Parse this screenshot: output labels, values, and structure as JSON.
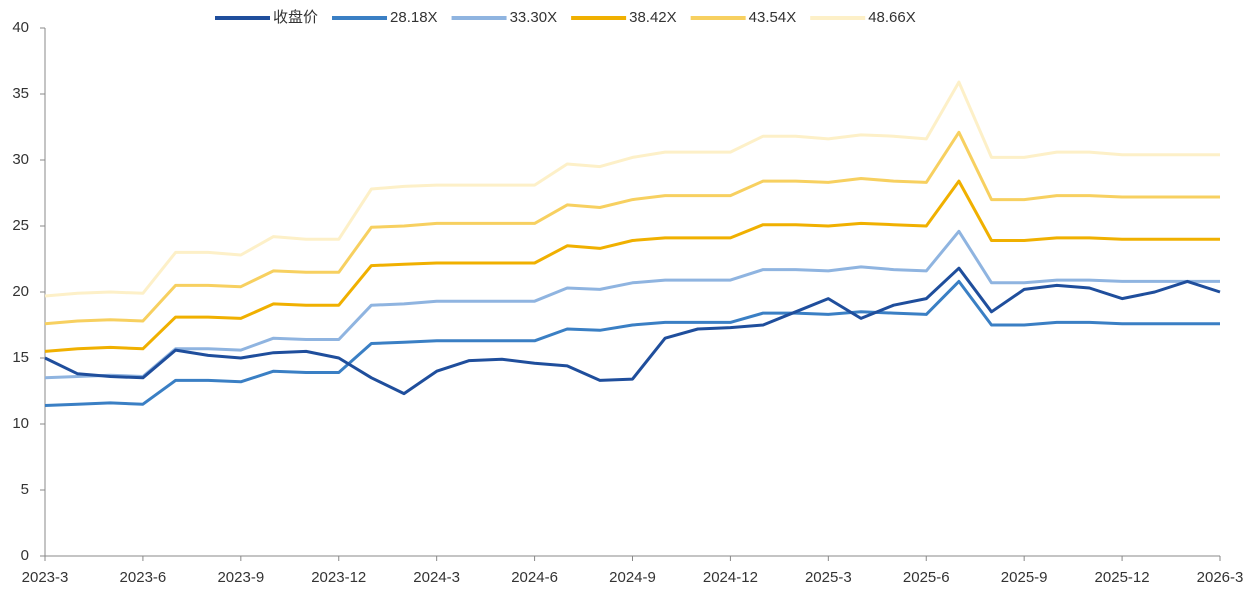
{
  "chart_data": {
    "type": "line",
    "categories": [
      "2023-3",
      null,
      null,
      "2023-6",
      null,
      null,
      "2023-9",
      null,
      null,
      "2023-12",
      null,
      null,
      "2024-3",
      null,
      null,
      "2024-6",
      null,
      null,
      "2024-9",
      null,
      null,
      "2024-12",
      null,
      null,
      "2025-3",
      null,
      null,
      "2025-6",
      null,
      null,
      "2025-9",
      null,
      null,
      "2025-12",
      null,
      null,
      "2026-3"
    ],
    "series": [
      {
        "name": "收盘价",
        "color": "#1f4e9c",
        "values": [
          15.0,
          13.8,
          13.6,
          13.5,
          15.6,
          15.2,
          15.0,
          15.4,
          15.5,
          15.0,
          13.5,
          12.3,
          14.0,
          14.8,
          14.9,
          14.6,
          14.4,
          13.3,
          13.4,
          16.5,
          17.2,
          17.3,
          17.5,
          18.5,
          19.5,
          18.0,
          19.0,
          19.5,
          21.8,
          18.5,
          20.2,
          20.5,
          20.3,
          19.5,
          20.0,
          20.8,
          20.0
        ]
      },
      {
        "name": "28.18X",
        "color": "#3a7fc4",
        "values": [
          11.4,
          11.5,
          11.6,
          11.5,
          13.3,
          13.3,
          13.2,
          14.0,
          13.9,
          13.9,
          16.1,
          16.2,
          16.3,
          16.3,
          16.3,
          16.3,
          17.2,
          17.1,
          17.5,
          17.7,
          17.7,
          17.7,
          18.4,
          18.4,
          18.3,
          18.5,
          18.4,
          18.3,
          20.8,
          17.5,
          17.5,
          17.7,
          17.7,
          17.6,
          17.6,
          17.6,
          17.6
        ]
      },
      {
        "name": "33.30X",
        "color": "#8fb4e0",
        "values": [
          13.5,
          13.6,
          13.7,
          13.6,
          15.7,
          15.7,
          15.6,
          16.5,
          16.4,
          16.4,
          19.0,
          19.1,
          19.3,
          19.3,
          19.3,
          19.3,
          20.3,
          20.2,
          20.7,
          20.9,
          20.9,
          20.9,
          21.7,
          21.7,
          21.6,
          21.9,
          21.7,
          21.6,
          24.6,
          20.7,
          20.7,
          20.9,
          20.9,
          20.8,
          20.8,
          20.8,
          20.8
        ]
      },
      {
        "name": "38.42X",
        "color": "#f0b000",
        "values": [
          15.5,
          15.7,
          15.8,
          15.7,
          18.1,
          18.1,
          18.0,
          19.1,
          19.0,
          19.0,
          22.0,
          22.1,
          22.2,
          22.2,
          22.2,
          22.2,
          23.5,
          23.3,
          23.9,
          24.1,
          24.1,
          24.1,
          25.1,
          25.1,
          25.0,
          25.2,
          25.1,
          25.0,
          28.4,
          23.9,
          23.9,
          24.1,
          24.1,
          24.0,
          24.0,
          24.0,
          24.0
        ]
      },
      {
        "name": "43.54X",
        "color": "#f7d060",
        "values": [
          17.6,
          17.8,
          17.9,
          17.8,
          20.5,
          20.5,
          20.4,
          21.6,
          21.5,
          21.5,
          24.9,
          25.0,
          25.2,
          25.2,
          25.2,
          25.2,
          26.6,
          26.4,
          27.0,
          27.3,
          27.3,
          27.3,
          28.4,
          28.4,
          28.3,
          28.6,
          28.4,
          28.3,
          32.1,
          27.0,
          27.0,
          27.3,
          27.3,
          27.2,
          27.2,
          27.2,
          27.2
        ]
      },
      {
        "name": "48.66X",
        "color": "#fdf0c8",
        "values": [
          19.7,
          19.9,
          20.0,
          19.9,
          23.0,
          23.0,
          22.8,
          24.2,
          24.0,
          24.0,
          27.8,
          28.0,
          28.1,
          28.1,
          28.1,
          28.1,
          29.7,
          29.5,
          30.2,
          30.6,
          30.6,
          30.6,
          31.8,
          31.8,
          31.6,
          31.9,
          31.8,
          31.6,
          35.9,
          30.2,
          30.2,
          30.6,
          30.6,
          30.4,
          30.4,
          30.4,
          30.4
        ]
      }
    ],
    "ylim": [
      0,
      40
    ],
    "yticks": [
      0,
      5,
      10,
      15,
      20,
      25,
      30,
      35,
      40
    ],
    "grid": false,
    "legend": "top"
  }
}
